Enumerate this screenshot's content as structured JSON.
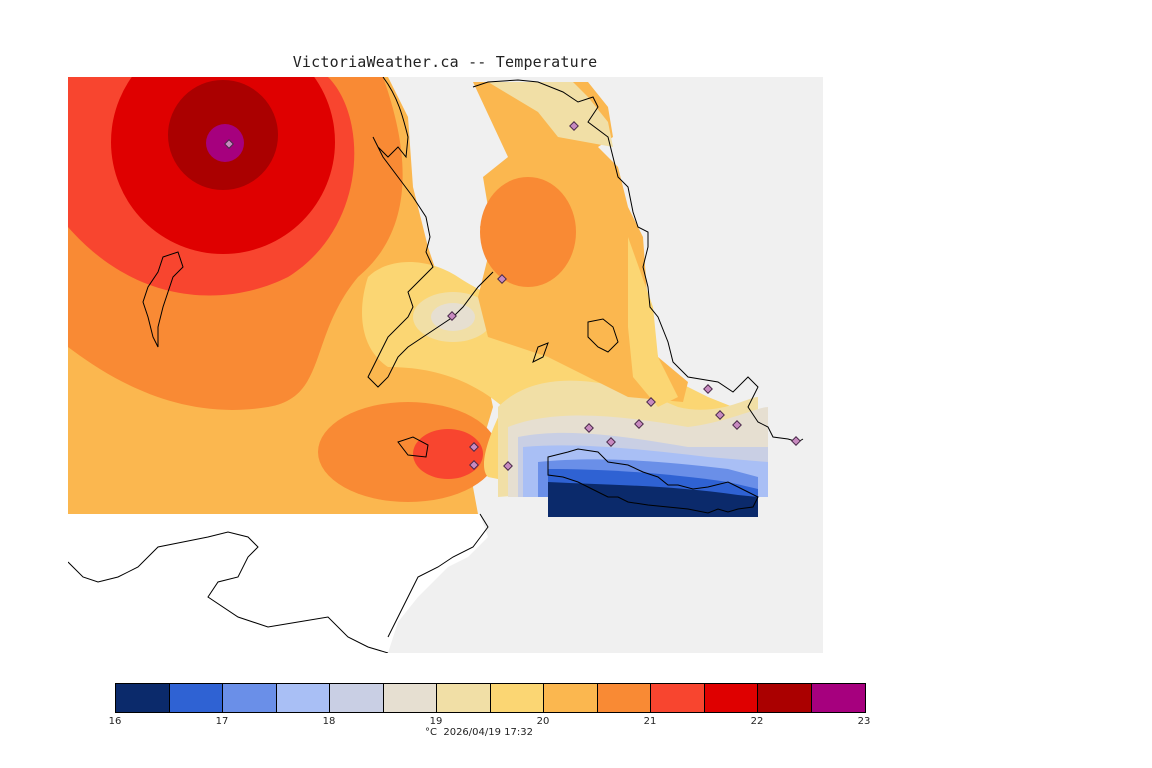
{
  "title": "VictoriaWeather.ca -- Temperature",
  "map": {
    "land_labels": [],
    "stations_visible": true
  },
  "legend": {
    "colors": [
      "#0b2a6b",
      "#2f62d3",
      "#6a8fe8",
      "#a9bff5",
      "#c9cfe4",
      "#e6dfd1",
      "#f1dfa6",
      "#fbd673",
      "#fbb74f",
      "#f98a34",
      "#f8452f",
      "#df0000",
      "#aa0000",
      "#a6007e"
    ],
    "ticks": [
      "16",
      "17",
      "18",
      "19",
      "20",
      "21",
      "22",
      "23"
    ],
    "unit": "°C",
    "timestamp": "2026/04/19 17:32"
  }
}
